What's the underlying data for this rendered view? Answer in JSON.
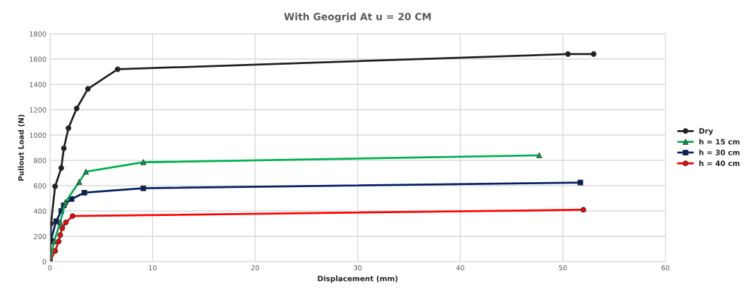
{
  "chart_data": {
    "type": "line",
    "title": "With Geogrid At u = 20 CM",
    "xlabel": "Displacement (mm)",
    "ylabel": "Pullout Load (N)",
    "xlim": [
      0,
      60
    ],
    "xticks": [
      0,
      10,
      20,
      30,
      40,
      50,
      60
    ],
    "ylim": [
      0,
      1800
    ],
    "yticks": [
      0,
      200,
      400,
      600,
      800,
      1000,
      1200,
      1400,
      1600,
      1800
    ],
    "grid": true,
    "legend": "right",
    "series": [
      {
        "name": "Dry",
        "color": "#1f1f1f",
        "marker": "circle",
        "x": [
          0,
          0.1,
          0.5,
          1.1,
          1.35,
          1.8,
          2.6,
          3.7,
          6.6,
          50.5,
          53
        ],
        "values": [
          0,
          300,
          595,
          740,
          895,
          1055,
          1210,
          1365,
          1520,
          1640,
          1640
        ]
      },
      {
        "name": "h = 15 cm",
        "color": "#00b050",
        "marker": "triangle",
        "x": [
          0,
          0.4,
          1.0,
          1.5,
          2.85,
          3.5,
          9.1,
          47.7
        ],
        "values": [
          0,
          160,
          310,
          470,
          630,
          710,
          785,
          840
        ]
      },
      {
        "name": "h = 30 cm",
        "color": "#002060",
        "marker": "square",
        "x": [
          0,
          0.07,
          0.6,
          1.1,
          1.35,
          2.1,
          3.35,
          9.1,
          51.7
        ],
        "values": [
          0,
          165,
          320,
          400,
          445,
          495,
          545,
          580,
          625
        ]
      },
      {
        "name": "h = 40 cm",
        "color": "#ff0000",
        "marker": "circle",
        "x": [
          0,
          0.5,
          0.85,
          1.0,
          1.2,
          1.55,
          2.2,
          52
        ],
        "values": [
          0,
          85,
          160,
          210,
          265,
          310,
          360,
          410
        ]
      }
    ]
  }
}
